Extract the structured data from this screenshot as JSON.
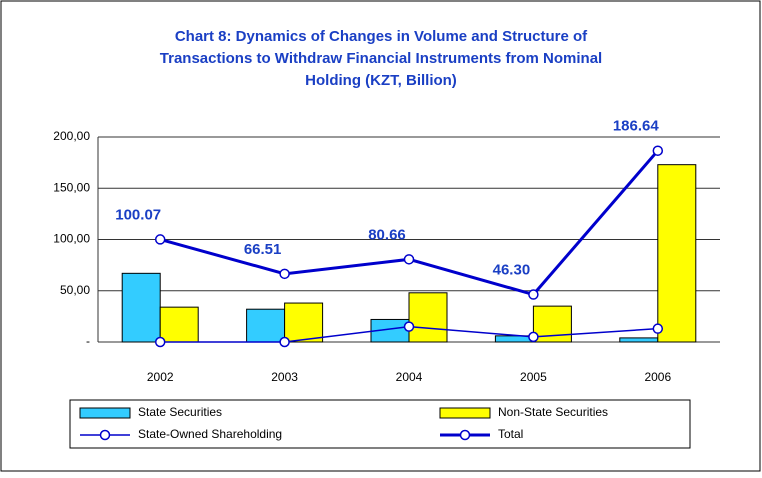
{
  "chart_data": {
    "type": "combo",
    "title": [
      "Chart 8: Dynamics of Changes in Volume and Structure of",
      "Transactions to Withdraw Financial Instruments from Nominal",
      "Holding  (KZT, Billion)"
    ],
    "categories": [
      "2002",
      "2003",
      "2004",
      "2005",
      "2006"
    ],
    "series": [
      {
        "name": "State Securities",
        "type": "bar",
        "color": "#33ccff",
        "values": [
          67,
          32,
          22,
          6,
          4
        ]
      },
      {
        "name": "Non-State Securities",
        "type": "bar",
        "color": "#ffff00",
        "values": [
          34,
          38,
          48,
          35,
          173
        ]
      },
      {
        "name": "State-Owned Shareholding",
        "type": "line",
        "color": "#0000cc",
        "values": [
          0,
          0,
          15,
          5,
          13
        ]
      },
      {
        "name": "Total",
        "type": "line",
        "color": "#0000cc",
        "values": [
          100.07,
          66.51,
          80.66,
          46.3,
          186.64
        ],
        "value_labels": [
          "100.07",
          "66.51",
          "80.66",
          "46.30",
          "186.64"
        ]
      }
    ],
    "ylim": [
      0,
      200
    ],
    "yticks": [
      {
        "value": 0,
        "label": "-"
      },
      {
        "value": 50,
        "label": "50,00"
      },
      {
        "value": 100,
        "label": "100,00"
      },
      {
        "value": 150,
        "label": "150,00"
      },
      {
        "value": 200,
        "label": "200,00"
      }
    ],
    "grid": true
  }
}
